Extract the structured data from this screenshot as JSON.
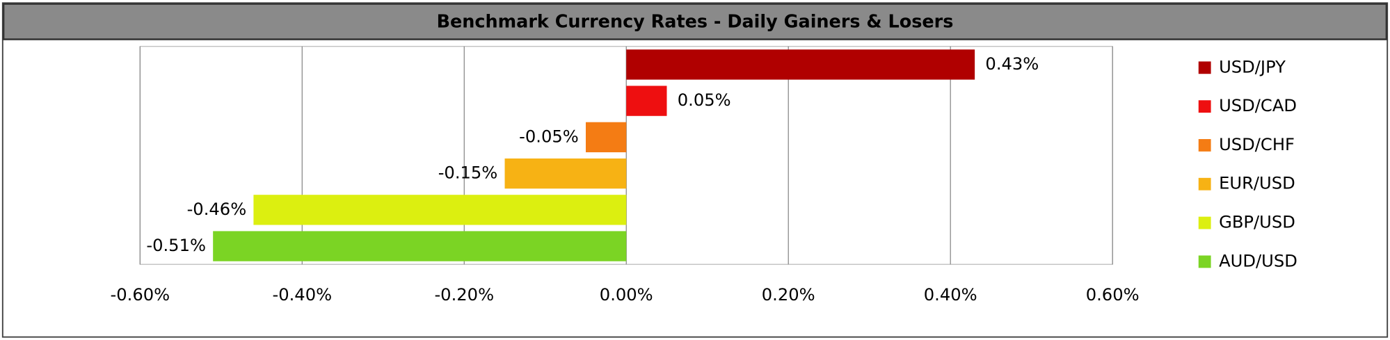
{
  "chart_data": {
    "type": "bar",
    "orientation": "horizontal",
    "title": "Benchmark Currency Rates - Daily Gainers & Losers",
    "series": [
      {
        "name": "USD/JPY",
        "color": "#b00000",
        "values": [
          0.43
        ],
        "value_labels": [
          "0.43%"
        ]
      },
      {
        "name": "USD/CAD",
        "color": "#ee0f10",
        "values": [
          0.05
        ],
        "value_labels": [
          "0.05%"
        ]
      },
      {
        "name": "USD/CHF",
        "color": "#f47c14",
        "values": [
          -0.05
        ],
        "value_labels": [
          "-0.05%"
        ]
      },
      {
        "name": "EUR/USD",
        "color": "#f7b214",
        "values": [
          -0.15
        ],
        "value_labels": [
          "-0.15%"
        ]
      },
      {
        "name": "GBP/USD",
        "color": "#dcef10",
        "values": [
          -0.46
        ],
        "value_labels": [
          "-0.46%"
        ]
      },
      {
        "name": "AUD/USD",
        "color": "#7bd424",
        "values": [
          -0.51
        ],
        "value_labels": [
          "-0.51%"
        ]
      }
    ],
    "xlim": [
      -0.6,
      0.6
    ],
    "xticks": [
      {
        "value": -0.6,
        "label": "-0.60%"
      },
      {
        "value": -0.4,
        "label": "-0.40%"
      },
      {
        "value": -0.2,
        "label": "-0.20%"
      },
      {
        "value": 0,
        "label": "0.00%"
      },
      {
        "value": 0.2,
        "label": "0.20%"
      },
      {
        "value": 0.4,
        "label": "0.40%"
      },
      {
        "value": 0.6,
        "label": "0.60%"
      }
    ],
    "grid": true,
    "legend": "right"
  }
}
